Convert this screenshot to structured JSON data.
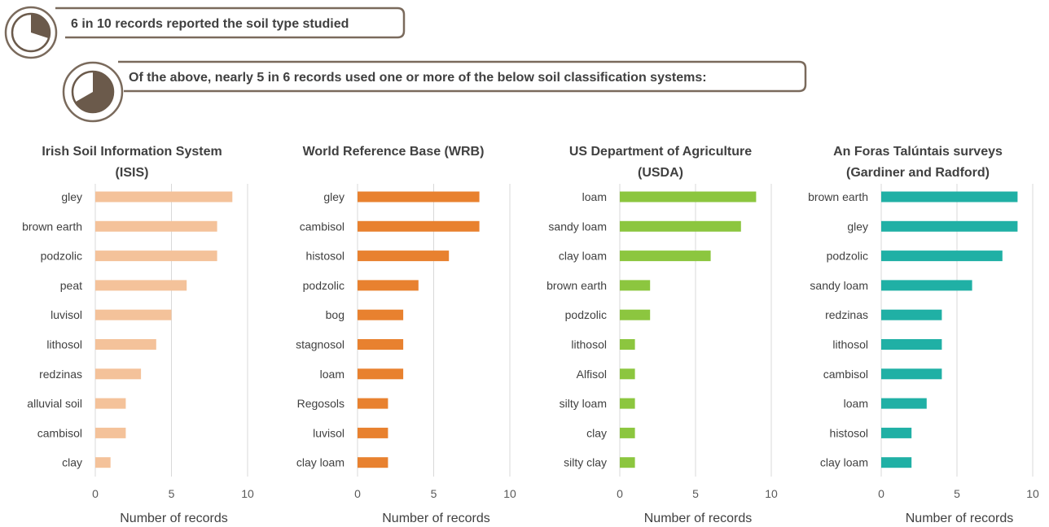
{
  "callouts": {
    "top": "6 in 10 records reported the soil type studied",
    "bottom": "Of the above, nearly 5 in 6 records used one or more of the below soil classification systems:"
  },
  "colors": {
    "callout_border": "#7a6a5c",
    "pie_fill": "#6b5a4b",
    "grid": "#d9d9d9"
  },
  "chart_data": [
    {
      "type": "bar",
      "orientation": "horizontal",
      "title": [
        "Irish Soil Information System",
        "(ISIS)"
      ],
      "categories": [
        "gley",
        "brown earth",
        "podzolic",
        "peat",
        "luvisol",
        "lithosol",
        "redzinas",
        "alluvial soil",
        "cambisol",
        "clay"
      ],
      "values": [
        9,
        8,
        8,
        6,
        5,
        4,
        3,
        2,
        2,
        1
      ],
      "xlabel": "Number of records",
      "xlim": [
        0,
        10
      ],
      "xticks": [
        "0",
        "5",
        "10"
      ],
      "color": "#f4c29a",
      "grid": true
    },
    {
      "type": "bar",
      "orientation": "horizontal",
      "title": [
        "World Reference Base (WRB)"
      ],
      "categories": [
        "gley",
        "cambisol",
        "histosol",
        "podzolic",
        "bog",
        "stagnosol",
        "loam",
        "Regosols",
        "luvisol",
        "clay loam"
      ],
      "values": [
        8,
        8,
        6,
        4,
        3,
        3,
        3,
        2,
        2,
        2
      ],
      "xlabel": "Number of records",
      "xlim": [
        0,
        10
      ],
      "xticks": [
        "0",
        "5",
        "10"
      ],
      "color": "#e8812f",
      "grid": true
    },
    {
      "type": "bar",
      "orientation": "horizontal",
      "title": [
        "US Department of Agriculture",
        "(USDA)"
      ],
      "categories": [
        "loam",
        "sandy loam",
        "clay loam",
        "brown earth",
        "podzolic",
        "lithosol",
        "Alfisol",
        "silty loam",
        "clay",
        "silty clay"
      ],
      "values": [
        9,
        8,
        6,
        2,
        2,
        1,
        1,
        1,
        1,
        1
      ],
      "xlabel": "Number of records",
      "xlim": [
        0,
        10
      ],
      "xticks": [
        "0",
        "5",
        "10"
      ],
      "color": "#8cc63f",
      "grid": true
    },
    {
      "type": "bar",
      "orientation": "horizontal",
      "title": [
        "An Foras Talúntais surveys",
        "(Gardiner and Radford)"
      ],
      "categories": [
        "brown earth",
        "gley",
        "podzolic",
        "sandy loam",
        "redzinas",
        "lithosol",
        "cambisol",
        "loam",
        "histosol",
        "clay loam"
      ],
      "values": [
        9,
        9,
        8,
        6,
        4,
        4,
        4,
        3,
        2,
        2
      ],
      "xlabel": "Number of records",
      "xlim": [
        0,
        10
      ],
      "xticks": [
        "0",
        "5",
        "10"
      ],
      "color": "#20b0a5",
      "grid": true
    }
  ]
}
